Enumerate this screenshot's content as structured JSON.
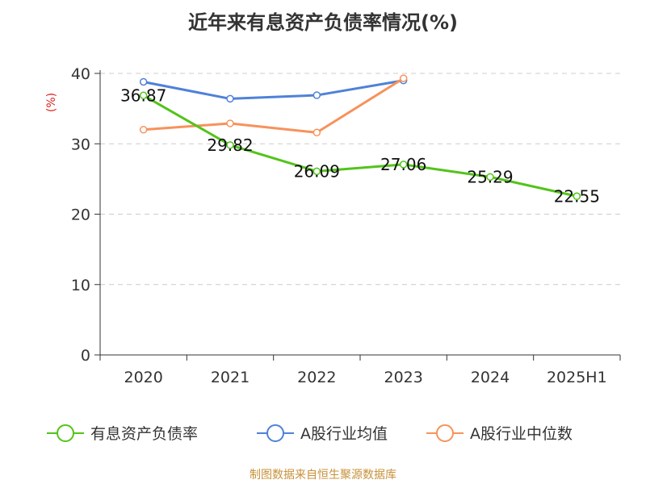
{
  "chart_title": "近年来有息资产负债率情况(%)",
  "source_text": "制图数据来自恒生聚源数据库",
  "chart_data": {
    "type": "line",
    "title": "近年来有息资产负债率情况(%)",
    "xlabel": "",
    "ylabel": "(%)",
    "categories": [
      "2020",
      "2021",
      "2022",
      "2023",
      "2024",
      "2025H1"
    ],
    "ylim": [
      0,
      40
    ],
    "yticks": [
      0,
      10,
      20,
      30,
      40
    ],
    "grid": "horizontal-dashed",
    "legend_position": "bottom",
    "series": [
      {
        "name": "有息资产负债率",
        "color": "#52c41a",
        "values": [
          36.87,
          29.82,
          26.09,
          27.06,
          25.29,
          22.55
        ],
        "labels": [
          "36.87",
          "29.82",
          "26.09",
          "27.06",
          "25.29",
          "22.55"
        ],
        "show_labels": true
      },
      {
        "name": "A股行业均值",
        "color": "#4f81d9",
        "values": [
          38.8,
          36.4,
          36.9,
          39.0,
          null,
          null
        ],
        "show_labels": false
      },
      {
        "name": "A股行业中位数",
        "color": "#f7925b",
        "values": [
          32.0,
          32.9,
          31.6,
          39.3,
          null,
          null
        ],
        "show_labels": false
      }
    ]
  }
}
